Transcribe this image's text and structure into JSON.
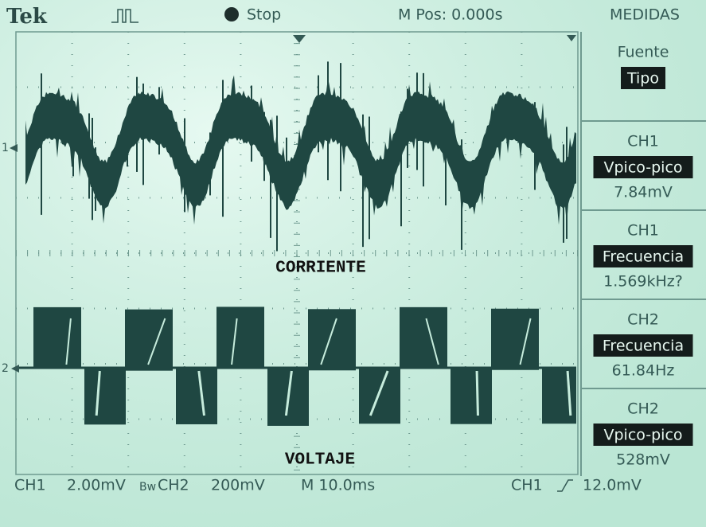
{
  "header": {
    "brand": "Tek",
    "state": "Stop",
    "position": "M Pos: 0.000s",
    "menu": "MEDIDAS"
  },
  "menu": [
    {
      "top": "Fuente",
      "middle": "Tipo"
    },
    {
      "top": "CH1",
      "middle": "Vpico-pico",
      "bottom": "7.84mV"
    },
    {
      "top": "CH1",
      "middle": "Frecuencia",
      "bottom": "1.569kHz?"
    },
    {
      "top": "CH2",
      "middle": "Frecuencia",
      "bottom": "61.84Hz"
    },
    {
      "top": "CH2",
      "middle": "Vpico-pico",
      "bottom": "528mV"
    }
  ],
  "traces": {
    "ch1_marker": "1",
    "ch2_marker": "2",
    "ch1_label": "CORRIENTE",
    "ch2_label": "VOLTAJE"
  },
  "footer": {
    "ch1": "CH1",
    "ch1_scale": "2.00mV",
    "bw": "Bw",
    "ch2": "CH2",
    "ch2_scale": "200mV",
    "timebase": "M 10.0ms",
    "trigger_source": "CH1",
    "trigger_level": "12.0mV"
  }
}
